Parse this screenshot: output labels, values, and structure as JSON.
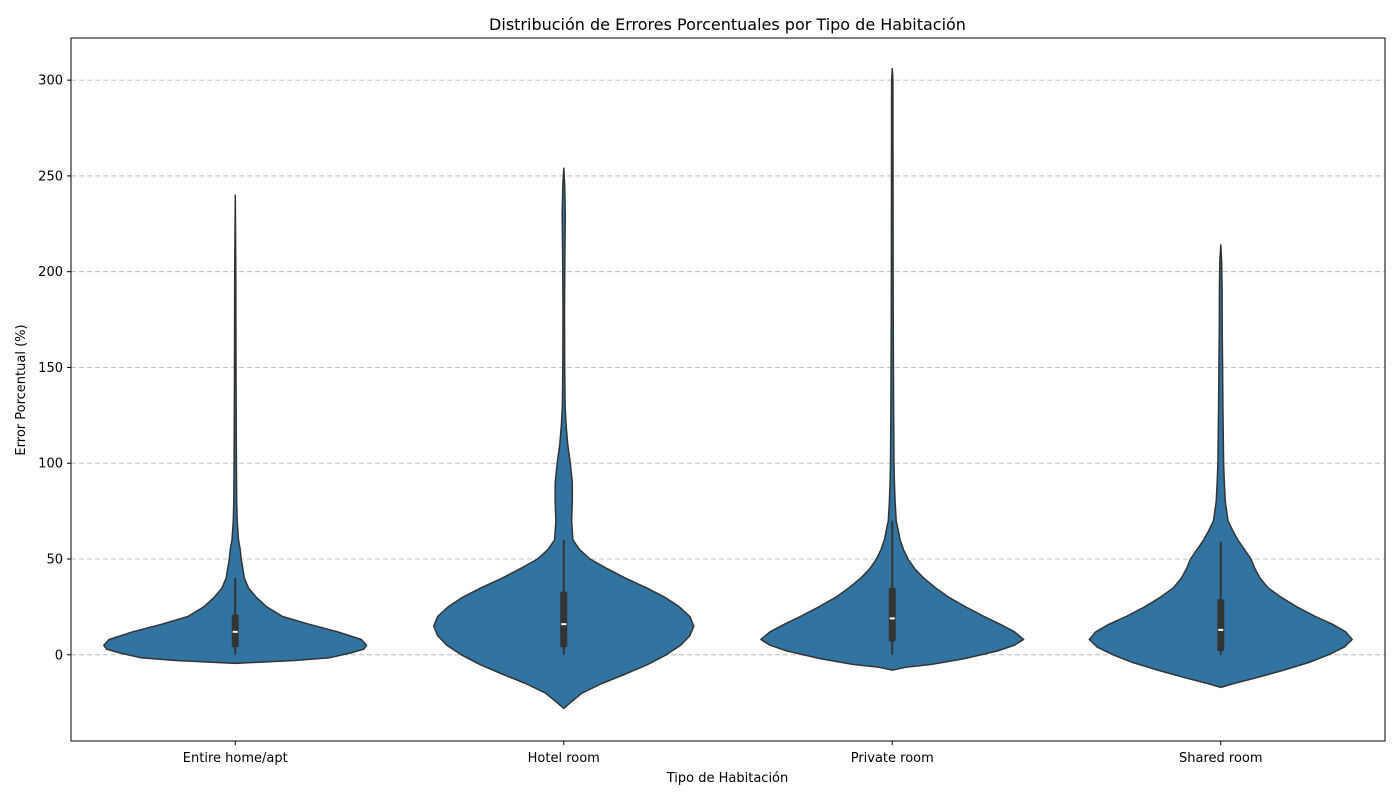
{
  "chart_data": {
    "type": "violin",
    "title": "Distribución de Errores Porcentuales por Tipo de Habitación",
    "xlabel": "Tipo de Habitación",
    "ylabel": "Error Porcentual (%)",
    "ylim": [
      -45,
      322
    ],
    "yticks": [
      "0",
      "50",
      "100",
      "150",
      "200",
      "250",
      "300"
    ],
    "ytick_values": [
      0,
      50,
      100,
      150,
      200,
      250,
      300
    ],
    "grid": "y-dashed",
    "colors": {
      "fill": "#3274a1",
      "edge": "#333333",
      "box": "#333333",
      "median": "#ffffff",
      "grid": "#b0b0b0"
    },
    "categories": [
      "Entire home/apt",
      "Hotel room",
      "Private room",
      "Shared room"
    ],
    "series": [
      {
        "category": "Entire home/apt",
        "whisker": [
          0,
          40
        ],
        "q1": 4,
        "median": 12,
        "q3": 21,
        "extent": [
          -4.5,
          240
        ],
        "density": [
          [
            -4.5,
            0
          ],
          [
            -3,
            0.45
          ],
          [
            -1.5,
            0.72
          ],
          [
            1,
            0.88
          ],
          [
            3,
            0.98
          ],
          [
            5,
            1.0
          ],
          [
            8,
            0.96
          ],
          [
            12,
            0.78
          ],
          [
            16,
            0.56
          ],
          [
            20,
            0.36
          ],
          [
            25,
            0.24
          ],
          [
            30,
            0.16
          ],
          [
            35,
            0.1
          ],
          [
            40,
            0.07
          ],
          [
            50,
            0.045
          ],
          [
            55,
            0.038
          ],
          [
            60,
            0.025
          ],
          [
            70,
            0.015
          ],
          [
            80,
            0.011
          ],
          [
            100,
            0.009
          ],
          [
            150,
            0.006
          ],
          [
            200,
            0.004
          ],
          [
            240,
            0
          ]
        ]
      },
      {
        "category": "Hotel room",
        "whisker": [
          0,
          60
        ],
        "q1": 4,
        "median": 16,
        "q3": 33,
        "extent": [
          -28,
          254
        ],
        "density": [
          [
            -28,
            0
          ],
          [
            -25,
            0.05
          ],
          [
            -20,
            0.14
          ],
          [
            -15,
            0.29
          ],
          [
            -10,
            0.47
          ],
          [
            -5,
            0.64
          ],
          [
            0,
            0.78
          ],
          [
            5,
            0.89
          ],
          [
            10,
            0.96
          ],
          [
            15,
            0.99
          ],
          [
            20,
            0.96
          ],
          [
            25,
            0.88
          ],
          [
            30,
            0.77
          ],
          [
            35,
            0.63
          ],
          [
            40,
            0.47
          ],
          [
            45,
            0.33
          ],
          [
            50,
            0.2
          ],
          [
            55,
            0.12
          ],
          [
            60,
            0.07
          ],
          [
            70,
            0.06
          ],
          [
            80,
            0.065
          ],
          [
            90,
            0.065
          ],
          [
            100,
            0.05
          ],
          [
            110,
            0.03
          ],
          [
            120,
            0.018
          ],
          [
            130,
            0.01
          ],
          [
            150,
            0.007
          ],
          [
            180,
            0.006
          ],
          [
            210,
            0.009
          ],
          [
            230,
            0.012
          ],
          [
            245,
            0.007
          ],
          [
            254,
            0
          ]
        ]
      },
      {
        "category": "Private room",
        "whisker": [
          0,
          70
        ],
        "q1": 7,
        "median": 19,
        "q3": 35,
        "extent": [
          -8,
          306
        ],
        "density": [
          [
            -8,
            0
          ],
          [
            -6.5,
            0.1
          ],
          [
            -5,
            0.3
          ],
          [
            -2,
            0.55
          ],
          [
            2,
            0.8
          ],
          [
            5,
            0.93
          ],
          [
            8,
            1.0
          ],
          [
            12,
            0.93
          ],
          [
            16,
            0.82
          ],
          [
            20,
            0.7
          ],
          [
            25,
            0.56
          ],
          [
            30,
            0.43
          ],
          [
            35,
            0.33
          ],
          [
            40,
            0.24
          ],
          [
            45,
            0.17
          ],
          [
            50,
            0.12
          ],
          [
            55,
            0.085
          ],
          [
            60,
            0.06
          ],
          [
            65,
            0.045
          ],
          [
            70,
            0.03
          ],
          [
            80,
            0.022
          ],
          [
            90,
            0.016
          ],
          [
            100,
            0.013
          ],
          [
            130,
            0.01
          ],
          [
            180,
            0.007
          ],
          [
            250,
            0.006
          ],
          [
            300,
            0.005
          ],
          [
            306,
            0
          ]
        ]
      },
      {
        "category": "Shared room",
        "whisker": [
          0,
          59
        ],
        "q1": 2,
        "median": 13,
        "q3": 29,
        "extent": [
          -17,
          214
        ],
        "density": [
          [
            -17,
            0
          ],
          [
            -15,
            0.1
          ],
          [
            -12,
            0.27
          ],
          [
            -8,
            0.48
          ],
          [
            -4,
            0.67
          ],
          [
            0,
            0.82
          ],
          [
            4,
            0.94
          ],
          [
            8,
            1.0
          ],
          [
            12,
            0.95
          ],
          [
            16,
            0.85
          ],
          [
            20,
            0.72
          ],
          [
            25,
            0.58
          ],
          [
            30,
            0.46
          ],
          [
            35,
            0.36
          ],
          [
            40,
            0.3
          ],
          [
            45,
            0.26
          ],
          [
            50,
            0.23
          ],
          [
            55,
            0.18
          ],
          [
            60,
            0.13
          ],
          [
            65,
            0.09
          ],
          [
            70,
            0.055
          ],
          [
            80,
            0.035
          ],
          [
            90,
            0.027
          ],
          [
            100,
            0.022
          ],
          [
            130,
            0.016
          ],
          [
            150,
            0.014
          ],
          [
            170,
            0.011
          ],
          [
            190,
            0.01
          ],
          [
            205,
            0.007
          ],
          [
            214,
            0
          ]
        ]
      }
    ]
  }
}
